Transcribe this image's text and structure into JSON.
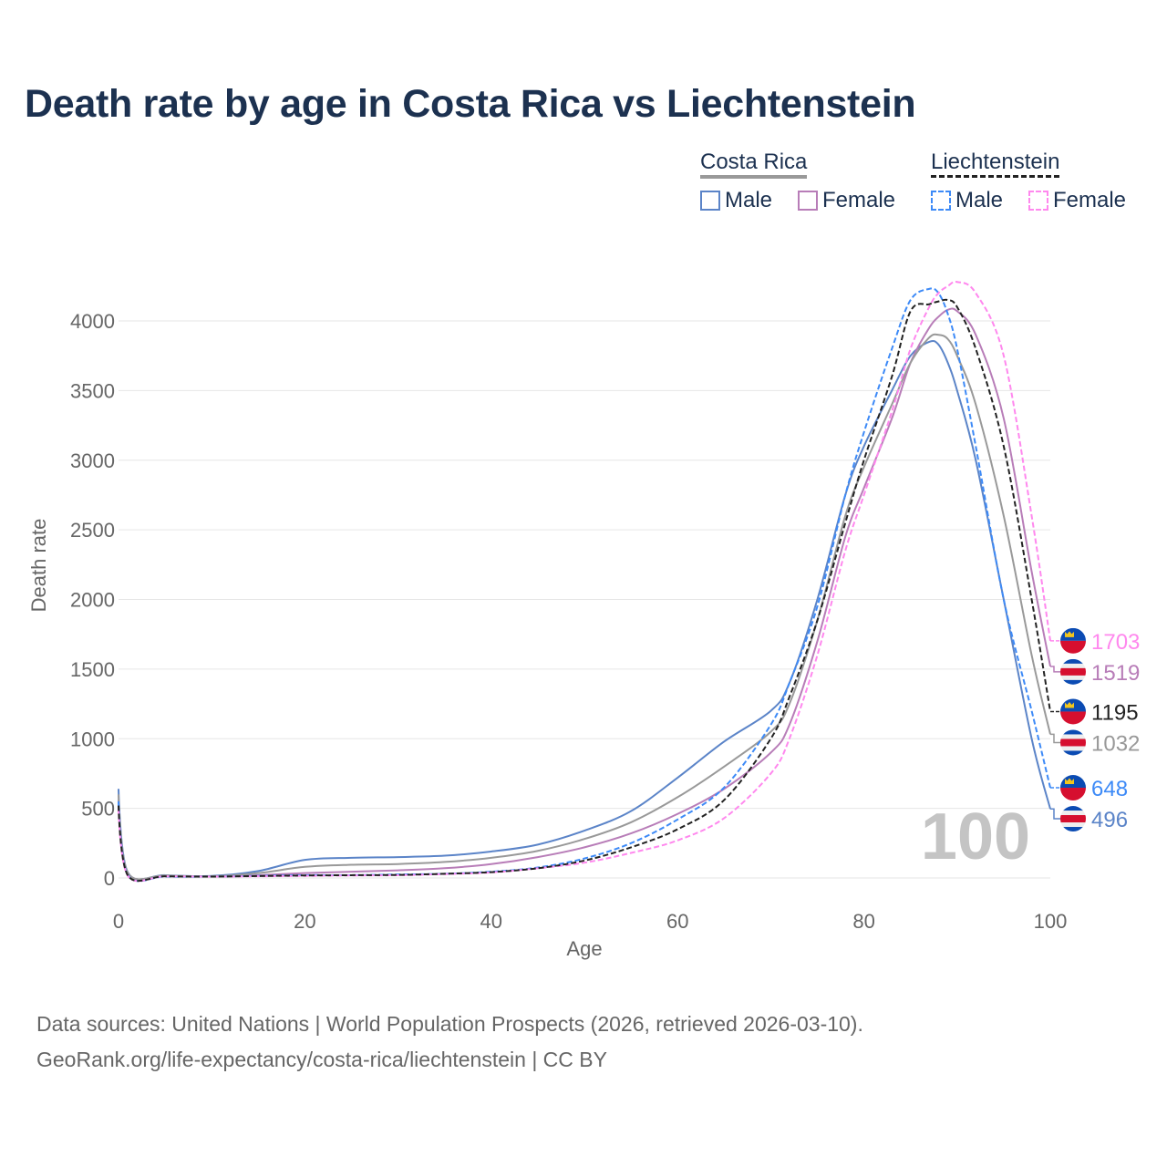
{
  "title": "Death rate by age in Costa Rica vs Liechtenstein",
  "legend": {
    "groups": [
      {
        "name": "Costa Rica",
        "items": [
          "Male",
          "Female"
        ]
      },
      {
        "name": "Liechtenstein",
        "items": [
          "Male",
          "Female"
        ]
      }
    ]
  },
  "watermark_age": "100",
  "sources": [
    "Data sources: United Nations | World Population Prospects (2026, retrieved 2026-03-10).",
    "GeoRank.org/life-expectancy/costa-rica/liechtenstein | CC BY"
  ],
  "chart_data": {
    "type": "line",
    "title": "Death rate by age in Costa Rica vs Liechtenstein",
    "xlabel": "Age",
    "ylabel": "Death rate",
    "xlim": [
      0,
      100
    ],
    "ylim": [
      0,
      4000
    ],
    "xticks": [
      "0",
      "20",
      "40",
      "60",
      "80",
      "100"
    ],
    "yticks": [
      "0",
      "500",
      "1000",
      "1500",
      "2000",
      "2500",
      "3000",
      "3500",
      "4000"
    ],
    "grid": true,
    "x": [
      0,
      1,
      5,
      10,
      15,
      20,
      25,
      30,
      35,
      40,
      45,
      50,
      55,
      60,
      65,
      70,
      72,
      75,
      78,
      80,
      83,
      85,
      87,
      88,
      89,
      90,
      92,
      95,
      98,
      100
    ],
    "series": [
      {
        "name": "Costa Rica Male",
        "color": "#5b84c8",
        "dash": false,
        "flag": "costa-rica",
        "end_label": "496",
        "values": [
          640,
          40,
          20,
          15,
          50,
          130,
          145,
          150,
          160,
          190,
          240,
          340,
          480,
          720,
          980,
          1200,
          1400,
          2000,
          2750,
          3100,
          3500,
          3750,
          3850,
          3830,
          3700,
          3500,
          3000,
          2000,
          1000,
          496
        ]
      },
      {
        "name": "Costa Rica Female",
        "color": "#b87db8",
        "dash": false,
        "flag": "costa-rica",
        "end_label": "1519",
        "values": [
          560,
          35,
          15,
          10,
          20,
          35,
          45,
          55,
          70,
          100,
          150,
          220,
          320,
          460,
          640,
          900,
          1100,
          1700,
          2450,
          2800,
          3300,
          3700,
          3950,
          4030,
          4080,
          4070,
          3900,
          3300,
          2200,
          1519
        ]
      },
      {
        "name": "Costa Rica Total",
        "color": "#999999",
        "dash": false,
        "flag": "costa-rica",
        "end_label": "1032",
        "values": [
          600,
          38,
          18,
          12,
          35,
          80,
          95,
          100,
          115,
          145,
          195,
          280,
          400,
          580,
          800,
          1050,
          1250,
          1850,
          2600,
          2950,
          3400,
          3700,
          3880,
          3900,
          3870,
          3750,
          3400,
          2600,
          1600,
          1032
        ]
      },
      {
        "name": "Liechtenstein Male",
        "color": "#3d8af7",
        "dash": true,
        "flag": "liechtenstein",
        "end_label": "648",
        "values": [
          550,
          20,
          10,
          10,
          15,
          20,
          20,
          25,
          30,
          45,
          75,
          140,
          250,
          420,
          650,
          1100,
          1400,
          1950,
          2750,
          3200,
          3800,
          4150,
          4230,
          4200,
          4050,
          3800,
          3100,
          2000,
          1200,
          648
        ]
      },
      {
        "name": "Liechtenstein Female",
        "color": "#ff88ee",
        "dash": true,
        "flag": "liechtenstein",
        "end_label": "1703",
        "values": [
          500,
          15,
          12,
          10,
          12,
          15,
          18,
          20,
          28,
          40,
          70,
          110,
          180,
          270,
          430,
          750,
          1000,
          1600,
          2350,
          2750,
          3350,
          3800,
          4100,
          4200,
          4250,
          4280,
          4200,
          3750,
          2600,
          1703
        ]
      },
      {
        "name": "Liechtenstein Total",
        "color": "#222222",
        "dash": true,
        "flag": "liechtenstein",
        "end_label": "1195",
        "values": [
          520,
          18,
          12,
          10,
          14,
          18,
          20,
          22,
          30,
          42,
          70,
          125,
          220,
          350,
          560,
          1000,
          1300,
          1850,
          2550,
          3000,
          3600,
          4070,
          4120,
          4140,
          4150,
          4100,
          3800,
          3100,
          2000,
          1195
        ]
      }
    ]
  }
}
